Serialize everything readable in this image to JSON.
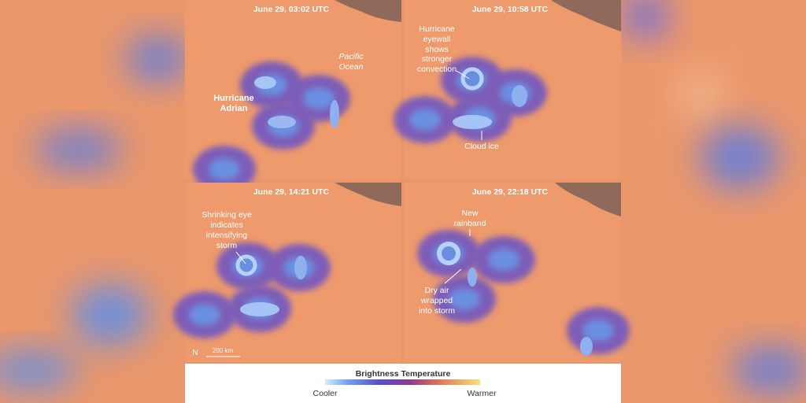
{
  "panels": [
    {
      "timestamp": "June 29, 03:02 UTC",
      "annotations": [
        {
          "lines": [
            "Hurricane",
            "Adrian"
          ]
        },
        {
          "lines": [
            "Pacific",
            "Ocean"
          ]
        }
      ]
    },
    {
      "timestamp": "June 29, 10:58 UTC",
      "annotations": [
        {
          "lines": [
            "Hurricane",
            "eyewall",
            "shows",
            "stronger",
            "convection"
          ]
        },
        {
          "lines": [
            "Cloud ice"
          ]
        }
      ]
    },
    {
      "timestamp": "June 29, 14:21 UTC",
      "annotations": [
        {
          "lines": [
            "Shrinking eye",
            "indicates",
            "intensifying",
            "storm"
          ]
        }
      ]
    },
    {
      "timestamp": "June 29, 22:18 UTC",
      "annotations": [
        {
          "lines": [
            "New",
            "rainband"
          ]
        },
        {
          "lines": [
            "Dry air",
            "wrapped",
            "into storm"
          ]
        }
      ]
    }
  ],
  "scale": {
    "north": "N",
    "distance": "200 km"
  },
  "legend": {
    "title": "Brightness Temperature",
    "low": "Cooler",
    "high": "Warmer"
  }
}
